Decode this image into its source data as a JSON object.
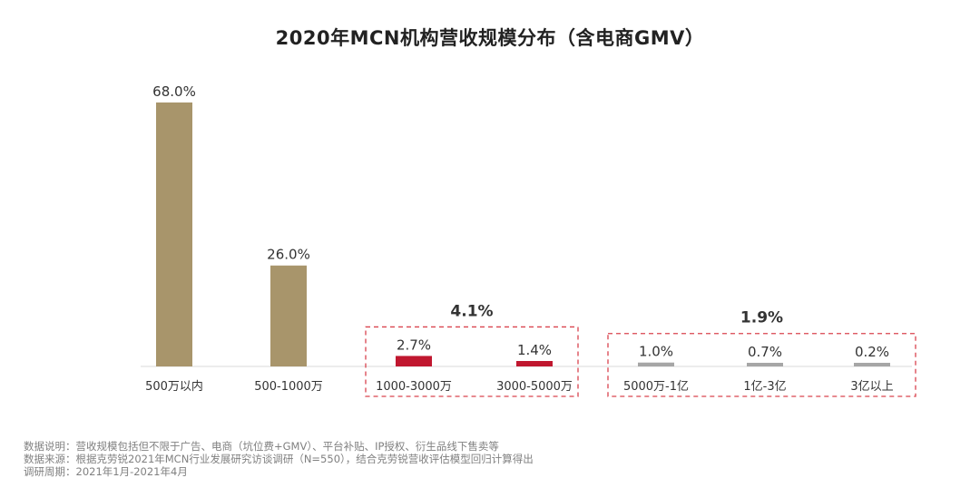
{
  "chart_data": {
    "type": "bar",
    "title": "2020年MCN机构营收规模分布（含电商GMV）",
    "categories": [
      "500万以内",
      "500-1000万",
      "1000-3000万",
      "3000-5000万",
      "5000万-1亿",
      "1亿-3亿",
      "3亿以上"
    ],
    "values": [
      68.0,
      26.0,
      2.7,
      1.4,
      1.0,
      0.7,
      0.2
    ],
    "data_labels": [
      "68.0%",
      "26.0%",
      "2.7%",
      "1.4%",
      "1.0%",
      "0.7%",
      "0.2%"
    ],
    "ylim": [
      0,
      68
    ],
    "unit": "%",
    "bar_colors": [
      "#a8956b",
      "#a8956b",
      "#c0172f",
      "#c0172f",
      "#a6a6a6",
      "#a6a6a6",
      "#a6a6a6"
    ],
    "groups": [
      {
        "label": "4.1%",
        "members": [
          2,
          3
        ],
        "border_color": "#d9434e"
      },
      {
        "label": "1.9%",
        "members": [
          4,
          5,
          6
        ],
        "border_color": "#d9434e"
      }
    ],
    "grid": false
  },
  "notes": {
    "line1": "数据说明：营收规模包括但不限于广告、电商（坑位费+GMV）、平台补贴、IP授权、衍生品线下售卖等",
    "line2": "数据来源：根据克劳锐2021年MCN行业发展研究访谈调研（N=550），结合克劳锐营收评估模型回归计算得出",
    "line3": "调研周期：2021年1月-2021年4月"
  }
}
